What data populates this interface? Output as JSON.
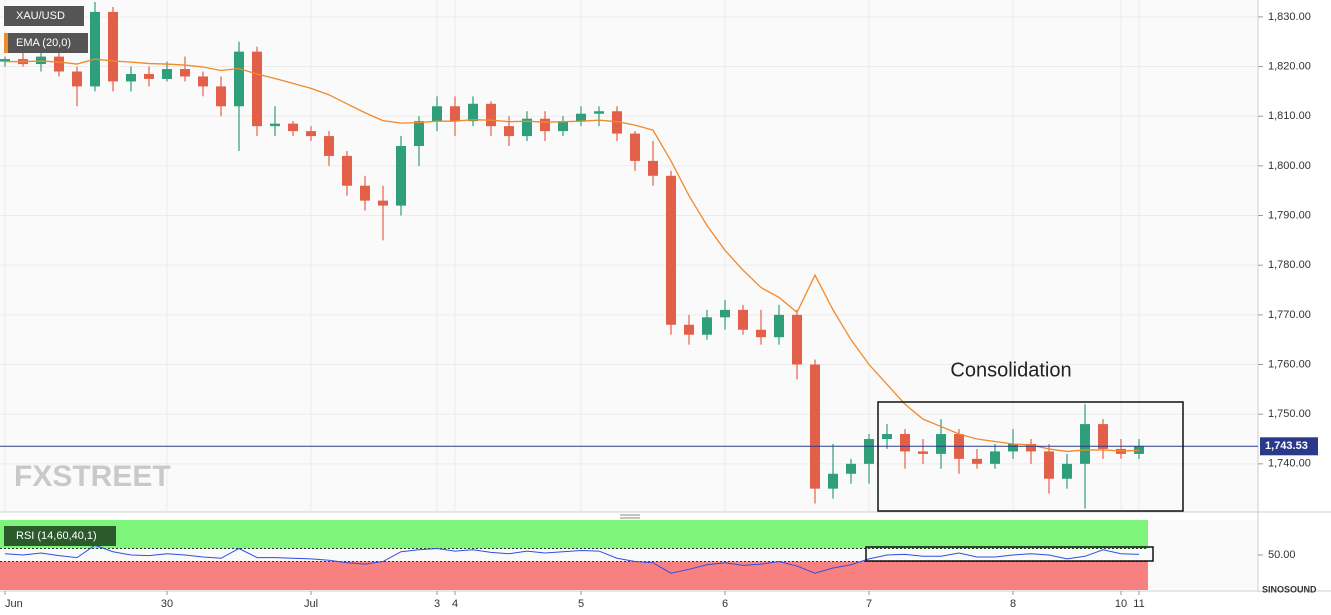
{
  "chart_data": {
    "type": "candlestick",
    "title": "XAU/USD",
    "watermark": "FXSTREET",
    "logo": "SINOSOUND",
    "annotation": "Consolidation",
    "up_color": "#2f9e7a",
    "down_color": "#e2604a",
    "grid": true,
    "ylim": [
      1730.3,
      1833.4
    ],
    "yticks": [
      {
        "value": 1740,
        "label": "1,740.00"
      },
      {
        "value": 1750,
        "label": "1,750.00"
      },
      {
        "value": 1760,
        "label": "1,760.00"
      },
      {
        "value": 1770,
        "label": "1,770.00"
      },
      {
        "value": 1780,
        "label": "1,780.00"
      },
      {
        "value": 1790,
        "label": "1,790.00"
      },
      {
        "value": 1800,
        "label": "1,800.00"
      },
      {
        "value": 1810,
        "label": "1,810.00"
      },
      {
        "value": 1820,
        "label": "1,820.00"
      },
      {
        "value": 1830,
        "label": "1,830.00"
      }
    ],
    "last": {
      "value": 1743.53,
      "label": "1,743.53"
    },
    "categories": [
      "Jun",
      null,
      null,
      null,
      null,
      null,
      null,
      null,
      null,
      "30",
      null,
      null,
      null,
      null,
      null,
      null,
      null,
      "Jul",
      null,
      null,
      null,
      null,
      null,
      null,
      "3",
      "4",
      null,
      null,
      null,
      null,
      null,
      null,
      "5",
      null,
      null,
      null,
      null,
      null,
      null,
      null,
      "6",
      null,
      null,
      null,
      null,
      null,
      null,
      null,
      "7",
      null,
      null,
      null,
      null,
      null,
      null,
      null,
      "8",
      null,
      null,
      null,
      null,
      null,
      "10",
      "11"
    ],
    "candles": [
      [
        1821,
        1822,
        1820,
        1821.5
      ],
      [
        1821.5,
        1823,
        1820,
        1820.5
      ],
      [
        1820.5,
        1823,
        1819,
        1822
      ],
      [
        1822,
        1823,
        1818,
        1819
      ],
      [
        1819,
        1820,
        1812,
        1816
      ],
      [
        1816,
        1833,
        1815,
        1831
      ],
      [
        1831,
        1832,
        1815,
        1817
      ],
      [
        1817,
        1820,
        1815,
        1818.5
      ],
      [
        1818.5,
        1820,
        1816,
        1817.5
      ],
      [
        1817.5,
        1821,
        1817,
        1819.5
      ],
      [
        1819.5,
        1822,
        1817,
        1818
      ],
      [
        1818,
        1819,
        1814,
        1816
      ],
      [
        1816,
        1818,
        1810,
        1812
      ],
      [
        1812,
        1825,
        1803,
        1823
      ],
      [
        1823,
        1824,
        1806,
        1808
      ],
      [
        1808,
        1812,
        1806,
        1808.5
      ],
      [
        1808.5,
        1809,
        1806,
        1807
      ],
      [
        1807,
        1808,
        1805,
        1806
      ],
      [
        1806,
        1807,
        1800,
        1802
      ],
      [
        1802,
        1803,
        1794,
        1796
      ],
      [
        1796,
        1798,
        1791,
        1793
      ],
      [
        1793,
        1796,
        1785,
        1792
      ],
      [
        1792,
        1806,
        1790,
        1804
      ],
      [
        1804,
        1810,
        1800,
        1809
      ],
      [
        1809,
        1814,
        1807,
        1812
      ],
      [
        1812,
        1814,
        1806,
        1809
      ],
      [
        1809,
        1814,
        1808,
        1812.5
      ],
      [
        1812.5,
        1813,
        1806,
        1808
      ],
      [
        1808,
        1810,
        1804,
        1806
      ],
      [
        1806,
        1811,
        1805,
        1809.5
      ],
      [
        1809.5,
        1811,
        1805,
        1807
      ],
      [
        1807,
        1810,
        1806,
        1809
      ],
      [
        1809,
        1812,
        1808,
        1810.5
      ],
      [
        1810.5,
        1812,
        1808,
        1811
      ],
      [
        1811,
        1812,
        1805,
        1806.5
      ],
      [
        1806.5,
        1807,
        1799,
        1801
      ],
      [
        1801,
        1805,
        1796,
        1798
      ],
      [
        1798,
        1799,
        1766,
        1768
      ],
      [
        1768,
        1770,
        1764,
        1766
      ],
      [
        1766,
        1771,
        1765,
        1769.5
      ],
      [
        1769.5,
        1773,
        1767,
        1771
      ],
      [
        1771,
        1772,
        1766,
        1767
      ],
      [
        1767,
        1771,
        1764,
        1765.5
      ],
      [
        1765.5,
        1772,
        1764,
        1770
      ],
      [
        1770,
        1771,
        1757,
        1760
      ],
      [
        1760,
        1761,
        1732,
        1735
      ],
      [
        1735,
        1744,
        1733,
        1738
      ],
      [
        1738,
        1741,
        1736,
        1740
      ],
      [
        1740,
        1746,
        1736,
        1745
      ],
      [
        1745,
        1748,
        1743,
        1746
      ],
      [
        1746,
        1747,
        1739,
        1742.5
      ],
      [
        1742.5,
        1745,
        1740,
        1742
      ],
      [
        1742,
        1749,
        1739,
        1746
      ],
      [
        1746,
        1747,
        1738,
        1741
      ],
      [
        1741,
        1743,
        1739,
        1740
      ],
      [
        1740,
        1744,
        1739,
        1742.5
      ],
      [
        1742.5,
        1747,
        1741,
        1744
      ],
      [
        1744,
        1745,
        1740,
        1742.5
      ],
      [
        1742.5,
        1744,
        1734,
        1737
      ],
      [
        1737,
        1742,
        1735,
        1740
      ],
      [
        1740,
        1752,
        1731,
        1748
      ],
      [
        1748,
        1749,
        1741,
        1743
      ],
      [
        1743,
        1745,
        1741,
        1742
      ],
      [
        1742,
        1745,
        1741,
        1743.53
      ]
    ],
    "ema": {
      "name": "EMA (20,0)",
      "color": "#f08a2c",
      "values": [
        1821.0,
        1821.0,
        1821.1,
        1820.9,
        1820.5,
        1821.5,
        1821.1,
        1820.9,
        1820.6,
        1820.5,
        1820.3,
        1819.9,
        1819.2,
        1819.6,
        1818.5,
        1817.6,
        1816.6,
        1815.6,
        1814.3,
        1812.5,
        1810.7,
        1809.1,
        1808.6,
        1808.7,
        1809.0,
        1809.0,
        1809.3,
        1809.2,
        1808.9,
        1809.0,
        1808.8,
        1808.9,
        1809.0,
        1809.2,
        1808.9,
        1808.2,
        1807.2,
        1801.0,
        1794.0,
        1788.0,
        1783.0,
        1779.0,
        1775.5,
        1773.5,
        1770.5,
        1778.0,
        1771.0,
        1765.0,
        1760.0,
        1756.0,
        1752.0,
        1749.0,
        1747.5,
        1746.0,
        1745.0,
        1744.5,
        1744.0,
        1743.8,
        1743.0,
        1742.5,
        1742.8,
        1742.8,
        1742.6,
        1742.7
      ]
    }
  },
  "rsi": {
    "name": "RSI (14,60,40,1)",
    "color": "#2f4fe0",
    "upper": 60,
    "lower": 40,
    "ylim": [
      -3.8,
      103.8
    ],
    "yticks": [
      {
        "value": 50,
        "label": "50.00"
      }
    ],
    "values": [
      52,
      50,
      53,
      49,
      46,
      65,
      55,
      50,
      49,
      52,
      50,
      47,
      45,
      60,
      46,
      46,
      45,
      44,
      42,
      38,
      36,
      40,
      55,
      58,
      60,
      56,
      58,
      54,
      52,
      56,
      53,
      55,
      57,
      56,
      45,
      40,
      38,
      22,
      28,
      35,
      38,
      34,
      36,
      40,
      33,
      22,
      30,
      35,
      44,
      50,
      51,
      48,
      48,
      53,
      47,
      47,
      50,
      52,
      50,
      44,
      48,
      58,
      52,
      51
    ]
  }
}
